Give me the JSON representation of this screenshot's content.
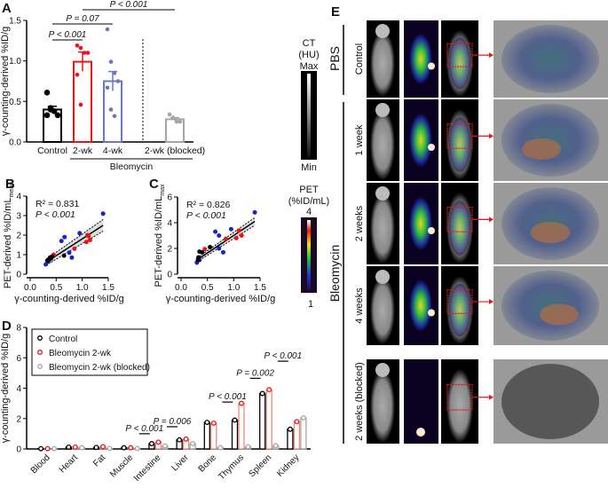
{
  "panel_labels": {
    "a": "A",
    "b": "B",
    "c": "C",
    "d": "D",
    "e": "E"
  },
  "colors": {
    "control": "#000000",
    "bleo2": "#e8141b",
    "bleo4": "#6a79c0",
    "blocked": "#a6a6a6",
    "scatter_blue": "#1a22c8",
    "scatter_red": "#e8141b",
    "bleo2_bar_d": "#f08a70"
  },
  "chart_data": [
    {
      "id": "A",
      "type": "bar",
      "ylabel": "γ-counting-derived %ID/g",
      "ylim": [
        0,
        1.5
      ],
      "yticks": [
        "0.0",
        "0.5",
        "1.0",
        "1.5"
      ],
      "categories": [
        "Control",
        "2-wk",
        "4-wk",
        "2-wk (blocked)"
      ],
      "group_label": "Bleomycin",
      "means": [
        0.4,
        0.99,
        0.75,
        0.28
      ],
      "sem": [
        0.04,
        0.12,
        0.12,
        0.02
      ],
      "points": [
        [
          0.61,
          0.4,
          0.38,
          0.33,
          0.33,
          0.42
        ],
        [
          1.19,
          1.16,
          1.1,
          1.1,
          0.83,
          0.46
        ],
        [
          1.39,
          0.99,
          0.85,
          0.75,
          0.67,
          0.4,
          0.32
        ],
        [
          0.34,
          0.3,
          0.25,
          0.25
        ]
      ],
      "annotations": [
        "P < 0.001",
        "P = 0.07",
        "P < 0.001"
      ]
    },
    {
      "id": "B",
      "type": "scatter",
      "xlabel": "γ-counting-derived %ID/g",
      "ylabel": "PET-derived %ID/mL",
      "ylabel_sub": "mean",
      "xlim": [
        0,
        1.5
      ],
      "ylim": [
        0,
        4
      ],
      "xticks": [
        "0.0",
        "0.5",
        "1.0",
        "1.5"
      ],
      "yticks": [
        "0",
        "1",
        "2",
        "3",
        "4"
      ],
      "r2": "R² = 0.831",
      "p": "P < 0.001",
      "fit": [
        [
          0.3,
          0.6
        ],
        [
          1.4,
          2.5
        ]
      ],
      "points": {
        "blue": [
          [
            0.3,
            0.5
          ],
          [
            0.35,
            0.65
          ],
          [
            0.75,
            1.1
          ],
          [
            0.8,
            0.85
          ],
          [
            0.6,
            1.7
          ],
          [
            0.66,
            1.9
          ],
          [
            0.95,
            2.1
          ],
          [
            1.4,
            3.1
          ]
        ],
        "red": [
          [
            0.45,
            1.0
          ],
          [
            0.85,
            1.3
          ],
          [
            1.1,
            2.0
          ],
          [
            1.15,
            1.75
          ],
          [
            1.08,
            1.65
          ],
          [
            1.12,
            1.95
          ]
        ],
        "black": [
          [
            0.33,
            0.7
          ],
          [
            0.35,
            0.75
          ],
          [
            0.38,
            0.85
          ],
          [
            0.4,
            0.8
          ],
          [
            0.42,
            0.9
          ],
          [
            0.65,
            0.95
          ]
        ]
      }
    },
    {
      "id": "C",
      "type": "scatter",
      "xlabel": "γ-counting-derived %ID/g",
      "ylabel": "PET-derived %ID/mL",
      "ylabel_sub": "max",
      "xlim": [
        0,
        1.5
      ],
      "ylim": [
        0,
        6
      ],
      "xticks": [
        "0.0",
        "0.5",
        "1.0",
        "1.5"
      ],
      "yticks": [
        "0",
        "2",
        "4",
        "6"
      ],
      "r2": "R² = 0.826",
      "p": "P < 0.001",
      "fit": [
        [
          0.3,
          1.1
        ],
        [
          1.4,
          4.1
        ]
      ],
      "points": {
        "blue": [
          [
            0.3,
            0.9
          ],
          [
            0.35,
            1.1
          ],
          [
            0.72,
            2.0
          ],
          [
            0.8,
            1.7
          ],
          [
            0.65,
            3.3
          ],
          [
            0.72,
            3.0
          ],
          [
            0.95,
            3.5
          ],
          [
            1.4,
            4.8
          ]
        ],
        "red": [
          [
            0.45,
            1.95
          ],
          [
            0.85,
            2.75
          ],
          [
            1.1,
            3.4
          ],
          [
            1.15,
            3.0
          ],
          [
            1.05,
            2.8
          ]
        ],
        "black": [
          [
            0.33,
            1.3
          ],
          [
            0.35,
            1.75
          ],
          [
            0.4,
            1.7
          ],
          [
            0.55,
            2.1
          ],
          [
            0.32,
            1.1
          ]
        ]
      }
    },
    {
      "id": "D",
      "type": "bar",
      "ylabel": "γ-counting-derived %ID/g",
      "ylim": [
        0,
        8
      ],
      "yticks": [
        "0",
        "2",
        "4",
        "6",
        "8"
      ],
      "categories": [
        "Blood",
        "Heart",
        "Fat",
        "Muscle",
        "Intestine",
        "Liver",
        "Bone",
        "Thymus",
        "Spleen",
        "Kidney"
      ],
      "legend": "top-left",
      "series": [
        {
          "name": "Control",
          "values": [
            0.02,
            0.12,
            0.1,
            0.08,
            0.35,
            0.6,
            1.75,
            1.9,
            3.65,
            1.3
          ]
        },
        {
          "name": "Bleomycin 2-wk",
          "values": [
            0.02,
            0.12,
            0.15,
            0.08,
            0.45,
            0.65,
            1.7,
            3.0,
            3.9,
            1.8
          ]
        },
        {
          "name": "Bleomycin 2-wk (blocked)",
          "values": [
            0.02,
            0.08,
            0.04,
            0.03,
            0.2,
            0.35,
            0.08,
            0.15,
            0.22,
            2.05
          ]
        }
      ],
      "annotations": [
        {
          "text": "P < 0.001",
          "organ": "Muscle"
        },
        {
          "text": "P = 0.006",
          "organ": "Intestine"
        },
        {
          "text": "P < 0.001",
          "organ": "Bone"
        },
        {
          "text": "P = 0.002",
          "organ": "Thymus"
        },
        {
          "text": "P < 0.001",
          "organ": "Spleen"
        }
      ]
    }
  ],
  "colorbars": {
    "ct": {
      "title": "CT",
      "unit": "(HU)",
      "max": "Max",
      "min": "Min"
    },
    "pet": {
      "title": "PET",
      "unit": "(%ID/mL)",
      "max": "4",
      "min": "1"
    }
  },
  "panel_e": {
    "group_pbs": "PBS",
    "group_bleo": "Bleomycin",
    "rows": [
      "Control",
      "1 week",
      "2 weeks",
      "4 weeks",
      "2 weeks (blocked)"
    ]
  }
}
